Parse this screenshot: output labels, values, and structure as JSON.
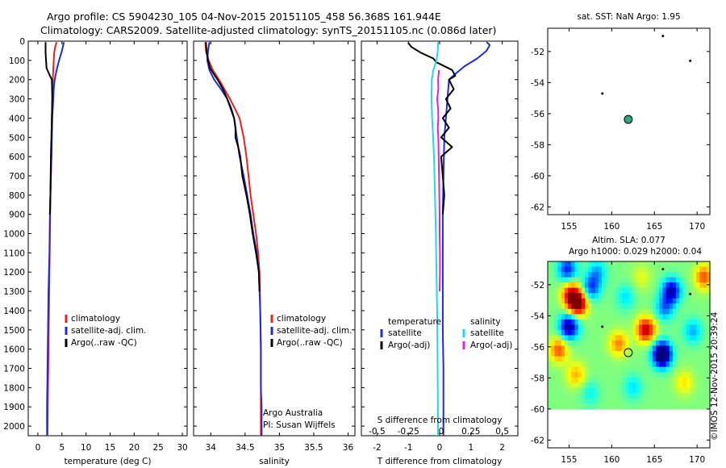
{
  "header": {
    "line1": "Argo profile: CS 5904230_105 04-Nov-2015 20151105_458 56.368S 161.944E",
    "line2": "Climatology: CARS2009. Satellite-adjusted climatology: synTS_20151105.nc (0.086d later)"
  },
  "side_label": "©IMOS 12-Nov-2015 20:39:24",
  "colors": {
    "climatology": "#e8231b",
    "satellite": "#1f2bd6",
    "argo": "#000000",
    "sal_satellite": "#22d8e6",
    "sal_argo": "#e020e0",
    "point_fill": "#2ba882"
  },
  "chart_data": [
    {
      "type": "line",
      "panel": "temperature",
      "xlabel": "temperature (deg C)",
      "xlim": [
        -2,
        31
      ],
      "xticks": [
        0,
        5,
        10,
        15,
        20,
        25,
        30
      ],
      "ylim": [
        2050,
        0
      ],
      "yticks": [
        0,
        100,
        200,
        300,
        400,
        500,
        600,
        700,
        800,
        900,
        1000,
        1100,
        1200,
        1300,
        1400,
        1500,
        1600,
        1700,
        1800,
        1900,
        2000
      ],
      "legend": [
        "climatology",
        "satellite-adj. clim.",
        "Argo(..raw -QC)"
      ],
      "series": [
        {
          "name": "climatology",
          "color": "#e8231b",
          "points": [
            [
              3.9,
              5
            ],
            [
              3.6,
              30
            ],
            [
              3.4,
              60
            ],
            [
              3.3,
              100
            ],
            [
              3.2,
              150
            ],
            [
              3.1,
              200
            ],
            [
              3.0,
              300
            ],
            [
              2.9,
              400
            ],
            [
              2.8,
              600
            ],
            [
              2.6,
              800
            ],
            [
              2.5,
              1000
            ],
            [
              2.4,
              1200
            ],
            [
              2.3,
              1400
            ],
            [
              2.2,
              1600
            ],
            [
              2.1,
              1800
            ],
            [
              2.0,
              2050
            ]
          ]
        },
        {
          "name": "satellite-adj. clim.",
          "color": "#1f2bd6",
          "points": [
            [
              5.4,
              5
            ],
            [
              5.0,
              50
            ],
            [
              4.4,
              100
            ],
            [
              3.9,
              150
            ],
            [
              3.5,
              200
            ],
            [
              3.3,
              250
            ],
            [
              3.2,
              300
            ],
            [
              3.0,
              400
            ],
            [
              2.9,
              500
            ],
            [
              2.7,
              700
            ],
            [
              2.5,
              900
            ],
            [
              2.4,
              1100
            ],
            [
              2.2,
              1300
            ],
            [
              2.1,
              1500
            ],
            [
              2.0,
              1700
            ],
            [
              1.9,
              1900
            ],
            [
              1.9,
              2050
            ]
          ]
        },
        {
          "name": "Argo(..raw -QC)",
          "color": "#000000",
          "points": [
            [
              1.6,
              5
            ],
            [
              1.6,
              60
            ],
            [
              1.7,
              100
            ],
            [
              1.8,
              140
            ],
            [
              2.5,
              180
            ],
            [
              2.9,
              200
            ],
            [
              3.0,
              300
            ],
            [
              2.9,
              400
            ],
            [
              2.8,
              500
            ],
            [
              2.7,
              600
            ],
            [
              2.6,
              800
            ],
            [
              2.5,
              900
            ]
          ]
        }
      ]
    },
    {
      "type": "line",
      "panel": "salinity",
      "xlabel": "salinity",
      "xlim": [
        33.75,
        36.1
      ],
      "xticks": [
        34,
        34.5,
        35,
        35.5,
        36
      ],
      "ylim": [
        2050,
        0
      ],
      "legend": [
        "climatology",
        "satellite-adj. clim.",
        "Argo(..raw -QC)"
      ],
      "annotation": [
        "Argo Australia",
        "PI: Susan Wijffels"
      ],
      "series": [
        {
          "name": "climatology",
          "color": "#e8231b",
          "points": [
            [
              33.92,
              5
            ],
            [
              33.93,
              50
            ],
            [
              33.97,
              100
            ],
            [
              34.03,
              150
            ],
            [
              34.12,
              200
            ],
            [
              34.2,
              250
            ],
            [
              34.28,
              300
            ],
            [
              34.35,
              350
            ],
            [
              34.42,
              400
            ],
            [
              34.48,
              500
            ],
            [
              34.52,
              600
            ],
            [
              34.55,
              700
            ],
            [
              34.58,
              800
            ],
            [
              34.62,
              900
            ],
            [
              34.66,
              1000
            ],
            [
              34.69,
              1100
            ],
            [
              34.71,
              1200
            ],
            [
              34.72,
              1400
            ],
            [
              34.73,
              1600
            ],
            [
              34.73,
              1800
            ],
            [
              34.73,
              2050
            ]
          ]
        },
        {
          "name": "satellite-adj. clim.",
          "color": "#1f2bd6",
          "points": [
            [
              33.98,
              5
            ],
            [
              33.96,
              50
            ],
            [
              33.95,
              100
            ],
            [
              33.98,
              150
            ],
            [
              34.05,
              200
            ],
            [
              34.15,
              250
            ],
            [
              34.24,
              300
            ],
            [
              34.3,
              350
            ],
            [
              34.34,
              400
            ],
            [
              34.38,
              500
            ],
            [
              34.42,
              600
            ],
            [
              34.48,
              700
            ],
            [
              34.53,
              800
            ],
            [
              34.58,
              900
            ],
            [
              34.62,
              1000
            ],
            [
              34.67,
              1100
            ],
            [
              34.7,
              1200
            ],
            [
              34.72,
              1400
            ],
            [
              34.73,
              1600
            ],
            [
              34.73,
              1800
            ],
            [
              34.74,
              1900
            ],
            [
              34.74,
              2050
            ]
          ]
        },
        {
          "name": "Argo(..raw -QC)",
          "color": "#000000",
          "points": [
            [
              33.93,
              5
            ],
            [
              33.94,
              60
            ],
            [
              33.96,
              100
            ],
            [
              33.99,
              140
            ],
            [
              34.06,
              180
            ],
            [
              34.1,
              200
            ],
            [
              34.18,
              250
            ],
            [
              34.24,
              300
            ],
            [
              34.29,
              350
            ],
            [
              34.34,
              400
            ],
            [
              34.36,
              450
            ],
            [
              34.36,
              500
            ],
            [
              34.4,
              550
            ],
            [
              34.43,
              600
            ],
            [
              34.46,
              700
            ],
            [
              34.52,
              800
            ],
            [
              34.57,
              900
            ],
            [
              34.61,
              1000
            ],
            [
              34.66,
              1100
            ],
            [
              34.7,
              1200
            ],
            [
              34.71,
              1300
            ]
          ]
        }
      ]
    },
    {
      "type": "line",
      "panel": "difference",
      "xlabel": "T difference from climatology",
      "x2label": "S difference from climatology",
      "xlim": [
        -2.5,
        2.5
      ],
      "xticks": [
        -2,
        -1,
        0,
        1,
        2
      ],
      "x2ticks": [
        "-0.5",
        "-0.25",
        "0",
        "0.25",
        "0.5"
      ],
      "ylim": [
        2050,
        0
      ],
      "legend_groups": [
        {
          "title": "temperature",
          "items": [
            "satellite",
            "Argo(-adj)"
          ]
        },
        {
          "title": "salinity",
          "items": [
            "satellite",
            "Argo(-adj)"
          ]
        }
      ],
      "series": [
        {
          "name": "satellite",
          "group": "temperature",
          "color": "#1f2bd6",
          "points": [
            [
              1.5,
              5
            ],
            [
              1.6,
              20
            ],
            [
              1.5,
              50
            ],
            [
              1.2,
              90
            ],
            [
              0.8,
              130
            ],
            [
              0.5,
              170
            ],
            [
              0.3,
              200
            ],
            [
              0.25,
              300
            ],
            [
              0.2,
              400
            ],
            [
              0.15,
              500
            ],
            [
              0.12,
              700
            ],
            [
              0.1,
              900
            ],
            [
              0.1,
              1100
            ],
            [
              0.1,
              1300
            ],
            [
              0.1,
              1500
            ],
            [
              0.12,
              1700
            ],
            [
              0.12,
              1900
            ],
            [
              0.12,
              2050
            ]
          ]
        },
        {
          "name": "Argo(-adj)",
          "group": "temperature",
          "color": "#000000",
          "points": [
            [
              -1.0,
              10
            ],
            [
              -0.9,
              30
            ],
            [
              -0.6,
              60
            ],
            [
              -0.2,
              90
            ],
            [
              -0.1,
              110
            ],
            [
              0.4,
              150
            ],
            [
              0.5,
              180
            ],
            [
              0.3,
              200
            ],
            [
              0.45,
              250
            ],
            [
              0.2,
              300
            ],
            [
              0.35,
              350
            ],
            [
              0.1,
              400
            ],
            [
              0.3,
              450
            ],
            [
              0.05,
              500
            ],
            [
              0.4,
              550
            ],
            [
              0.05,
              600
            ],
            [
              0.1,
              700
            ],
            [
              0.15,
              800
            ],
            [
              0.1,
              900
            ]
          ]
        },
        {
          "name": "satellite",
          "group": "salinity",
          "color": "#22d8e6",
          "points": [
            [
              -0.05,
              5
            ],
            [
              -0.06,
              50
            ],
            [
              -0.1,
              100
            ],
            [
              -0.2,
              150
            ],
            [
              -0.25,
              200
            ],
            [
              -0.26,
              300
            ],
            [
              -0.24,
              400
            ],
            [
              -0.21,
              500
            ],
            [
              -0.18,
              600
            ],
            [
              -0.15,
              800
            ],
            [
              -0.12,
              1000
            ],
            [
              -0.1,
              1200
            ],
            [
              -0.08,
              1400
            ],
            [
              -0.07,
              1600
            ],
            [
              -0.06,
              1800
            ],
            [
              -0.05,
              2050
            ]
          ]
        },
        {
          "name": "Argo(-adj)",
          "group": "salinity",
          "color": "#e020e0",
          "points": [
            [
              -0.02,
              150
            ],
            [
              -0.05,
              200
            ],
            [
              -0.04,
              250
            ],
            [
              -0.08,
              300
            ],
            [
              -0.05,
              350
            ],
            [
              -0.04,
              400
            ],
            [
              -0.06,
              450
            ],
            [
              -0.04,
              500
            ],
            [
              -0.03,
              600
            ],
            [
              -0.02,
              700
            ],
            [
              -0.01,
              800
            ],
            [
              0.0,
              900
            ],
            [
              0.0,
              1000
            ],
            [
              0.01,
              1100
            ],
            [
              0.01,
              1200
            ],
            [
              0.0,
              1300
            ]
          ]
        }
      ]
    },
    {
      "type": "scatter",
      "panel": "sst_map",
      "title": "sat. SST: NaN Argo: 1.95",
      "xlim": [
        152.5,
        171.5
      ],
      "ylim": [
        -62.5,
        -50.5
      ],
      "xticks": [
        155,
        160,
        165,
        170
      ],
      "yticks": [
        -52,
        -54,
        -56,
        -58,
        -60,
        -62
      ],
      "points": [
        {
          "x": 166.0,
          "y": -51.0,
          "kind": "small"
        },
        {
          "x": 169.2,
          "y": -52.6,
          "kind": "small"
        },
        {
          "x": 158.9,
          "y": -54.7,
          "kind": "small"
        },
        {
          "x": 161.94,
          "y": -56.37,
          "kind": "argo"
        }
      ]
    },
    {
      "type": "heatmap",
      "panel": "sla_map",
      "title_lines": [
        "Altim. SLA: 0.077",
        "Argo h1000: 0.029 h2000: 0.04"
      ],
      "xlim": [
        152.5,
        171.5
      ],
      "ylim": [
        -62.5,
        -50.5
      ],
      "data_ylim": [
        -60.0,
        -50.5
      ],
      "xticks": [
        155,
        160,
        165,
        170
      ],
      "yticks": [
        -52,
        -54,
        -56,
        -58,
        -60,
        -62
      ],
      "blobs": [
        {
          "x": 156.0,
          "y": -53.2,
          "v": 0.55
        },
        {
          "x": 155.2,
          "y": -52.6,
          "v": 0.35
        },
        {
          "x": 154.8,
          "y": -51.0,
          "v": -0.35
        },
        {
          "x": 155.0,
          "y": -54.7,
          "v": -0.5
        },
        {
          "x": 157.6,
          "y": -52.2,
          "v": -0.3
        },
        {
          "x": 158.3,
          "y": -51.2,
          "v": -0.2
        },
        {
          "x": 160.8,
          "y": -55.8,
          "v": 0.25
        },
        {
          "x": 164.0,
          "y": -54.9,
          "v": 0.45
        },
        {
          "x": 165.9,
          "y": -56.5,
          "v": -0.7
        },
        {
          "x": 167.0,
          "y": -52.4,
          "v": -0.45
        },
        {
          "x": 166.2,
          "y": -53.5,
          "v": -0.25
        },
        {
          "x": 170.8,
          "y": -51.5,
          "v": 0.3
        },
        {
          "x": 169.5,
          "y": -55.0,
          "v": -0.2
        },
        {
          "x": 161.6,
          "y": -52.8,
          "v": -0.15
        },
        {
          "x": 153.8,
          "y": -56.2,
          "v": 0.3
        },
        {
          "x": 155.8,
          "y": -57.8,
          "v": 0.2
        },
        {
          "x": 162.5,
          "y": -58.6,
          "v": -0.15
        },
        {
          "x": 157.5,
          "y": -59.0,
          "v": -0.12
        },
        {
          "x": 168.5,
          "y": -58.3,
          "v": 0.15
        },
        {
          "x": 163.5,
          "y": -51.5,
          "v": 0.1
        }
      ],
      "points": [
        {
          "x": 166.0,
          "y": -51.0,
          "kind": "small"
        },
        {
          "x": 169.2,
          "y": -52.6,
          "kind": "small"
        },
        {
          "x": 158.9,
          "y": -54.7,
          "kind": "small"
        },
        {
          "x": 161.94,
          "y": -56.37,
          "kind": "argo"
        }
      ]
    }
  ]
}
